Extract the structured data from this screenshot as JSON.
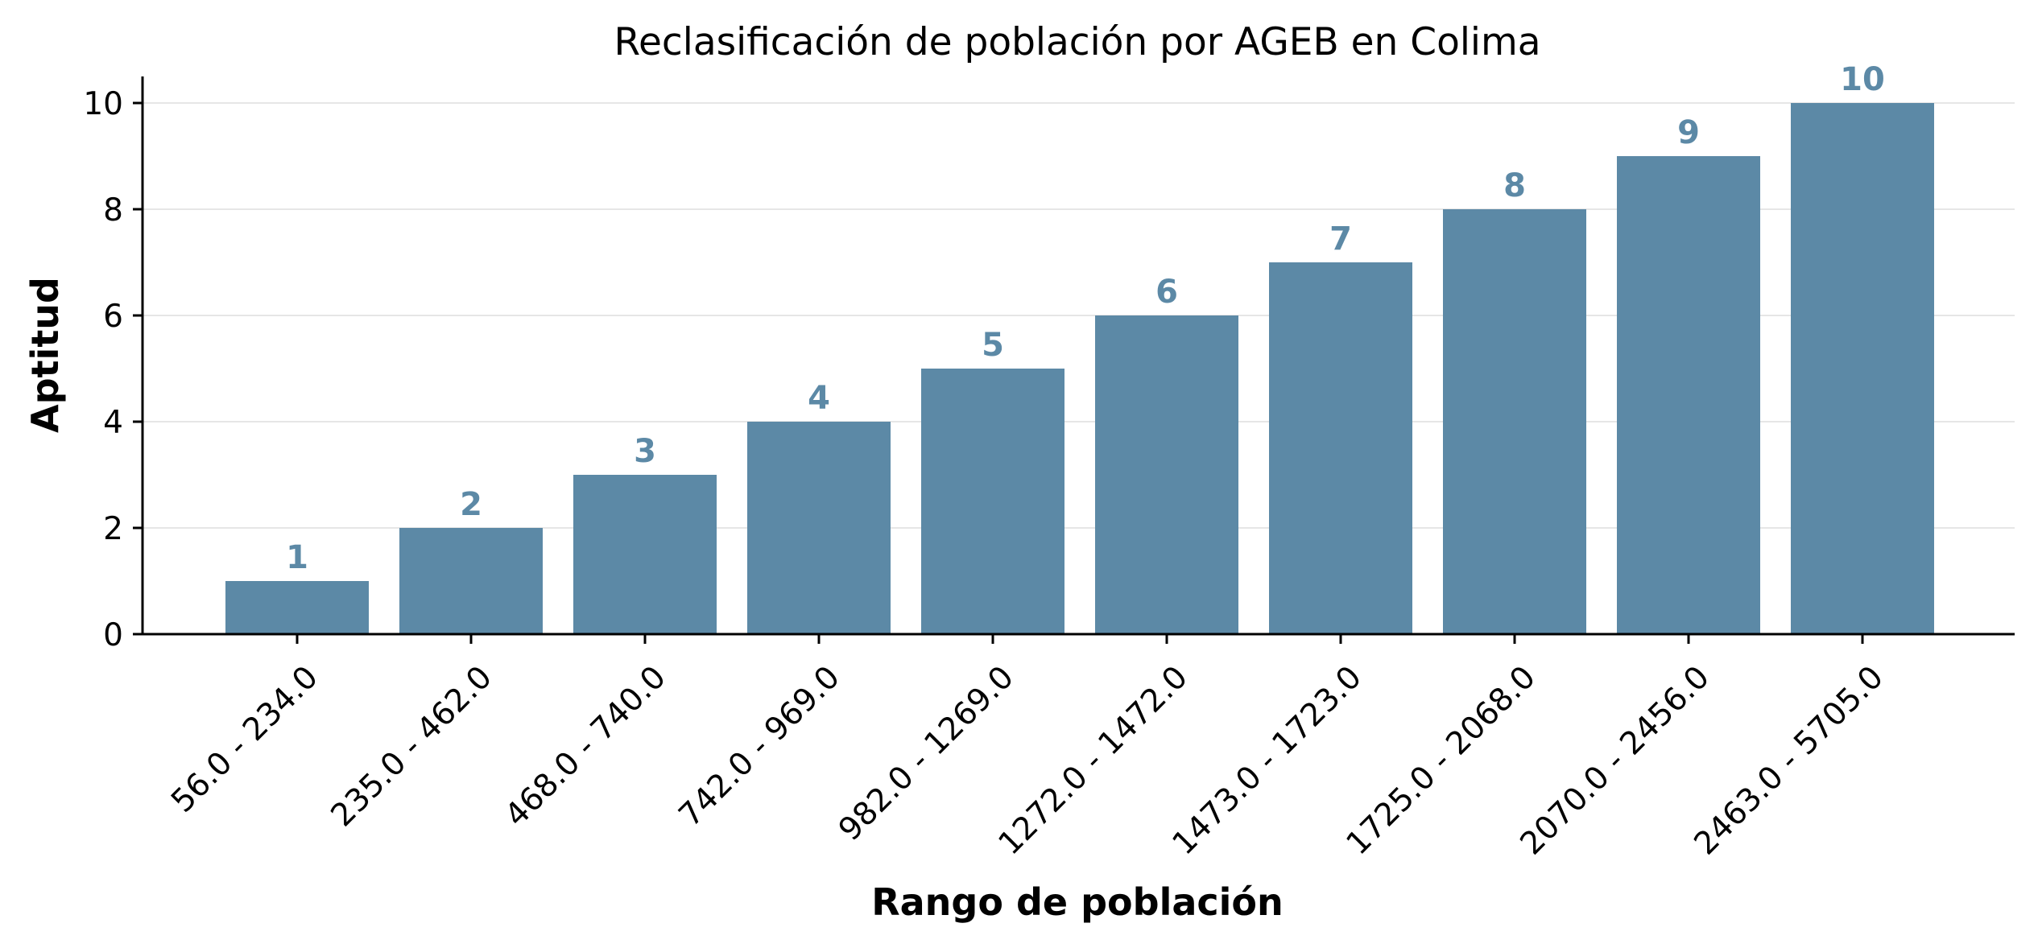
{
  "chart_data": {
    "type": "bar",
    "title": "Reclasificación de población por AGEB en Colima",
    "xlabel": "Rango de población",
    "ylabel": "Aptitud",
    "categories": [
      "56.0 - 234.0",
      "235.0 - 462.0",
      "468.0 - 740.0",
      "742.0 - 969.0",
      "982.0 - 1269.0",
      "1272.0 - 1472.0",
      "1473.0 - 1723.0",
      "1725.0 - 2068.0",
      "2070.0 - 2456.0",
      "2463.0 - 5705.0"
    ],
    "values": [
      1,
      2,
      3,
      4,
      5,
      6,
      7,
      8,
      9,
      10
    ],
    "data_labels": [
      "1",
      "2",
      "3",
      "4",
      "5",
      "6",
      "7",
      "8",
      "9",
      "10"
    ],
    "ylim": [
      0,
      10.5
    ],
    "yticks": [
      0,
      2,
      4,
      6,
      8,
      10
    ],
    "grid": "y",
    "legend": "none",
    "bar_color": "#5c89a6",
    "label_color": "#5c89a6"
  }
}
